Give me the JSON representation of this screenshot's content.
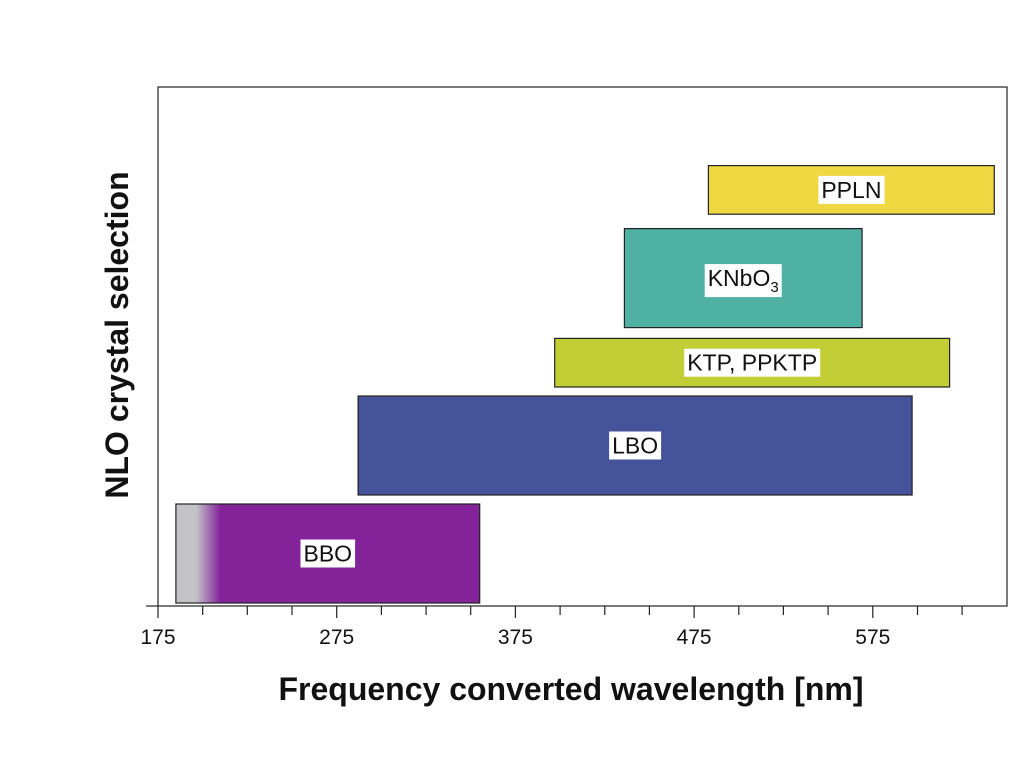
{
  "chart_data": {
    "type": "bar",
    "orientation": "horizontal-range",
    "xlabel": "Frequency converted wavelength [nm]",
    "ylabel": "NLO crystal selection",
    "xlim": [
      175,
      640
    ],
    "x_ticks": [
      175,
      275,
      375,
      475,
      575
    ],
    "x_tick_labels": [
      "175",
      "275",
      "375",
      "475",
      "575"
    ],
    "x_minor_step": 25,
    "grid": false,
    "legend": "none",
    "bars": [
      {
        "name": "BBO",
        "label_main": "BBO",
        "label_sub": "",
        "start": 185,
        "end": 355,
        "row": 0,
        "rows": 1,
        "color": "#832299",
        "fade_start_color": "#c4c4c8",
        "fade_until": 210
      },
      {
        "name": "LBO",
        "label_main": "LBO",
        "label_sub": "",
        "start": 287,
        "end": 597,
        "row": 1,
        "rows": 1,
        "color": "#45539b"
      },
      {
        "name": "KTP, PPKTP",
        "label_main": "KTP, PPKTP",
        "label_sub": "",
        "start": 397,
        "end": 618,
        "row": 2,
        "rows": 0.45,
        "color": "#c2ce35"
      },
      {
        "name": "KNbO3",
        "label_main": "KNbO",
        "label_sub": "3",
        "start": 436,
        "end": 569,
        "row": 2.55,
        "rows": 1,
        "color": "#4eb1a4"
      },
      {
        "name": "PPLN",
        "label_main": "PPLN",
        "label_sub": "",
        "start": 483,
        "end": 643,
        "row": 3.6,
        "rows": 0.45,
        "color": "#efd841"
      }
    ]
  }
}
